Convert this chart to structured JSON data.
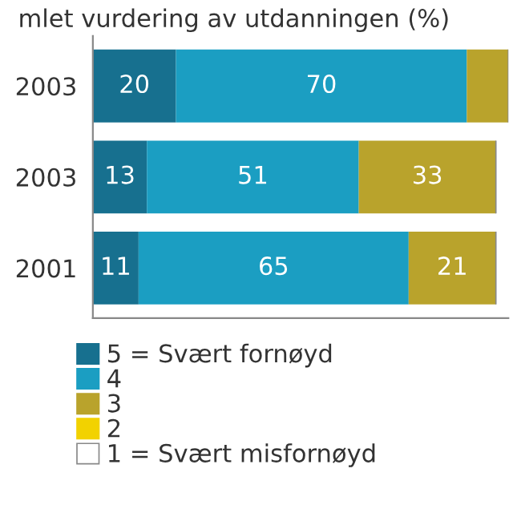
{
  "chart_data": {
    "type": "bar",
    "orientation": "horizontal",
    "stacked": true,
    "title": "mlet vurdering av utdanningen (%)",
    "categories": [
      "2003",
      "2003",
      "2001"
    ],
    "series": [
      {
        "name": "5 = Svært fornøyd",
        "color": "#17708f",
        "values": [
          20,
          13,
          11
        ],
        "value_labels": [
          "20",
          "13",
          "11"
        ]
      },
      {
        "name": "4",
        "color": "#1b9ec2",
        "values": [
          70,
          51,
          65
        ],
        "value_labels": [
          "70",
          "51",
          "65"
        ]
      },
      {
        "name": "3",
        "color": "#b9a32c",
        "values": [
          10,
          33,
          21
        ],
        "value_labels": [
          null,
          "33",
          "21"
        ]
      },
      {
        "name": "2",
        "color": "#f2d200",
        "values": [
          null,
          null,
          null
        ]
      },
      {
        "name": "1 = Svært misfornøyd",
        "color": "#ffffff",
        "values": [
          null,
          null,
          null
        ]
      }
    ],
    "xlim": [
      0,
      100
    ],
    "tick_labels": "y",
    "legend": "bottom",
    "grid": false
  }
}
